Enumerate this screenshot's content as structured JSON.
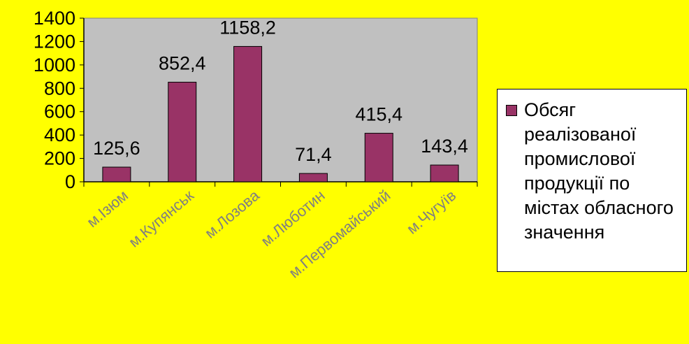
{
  "chart_data": {
    "type": "bar",
    "categories": [
      "м.Ізюм",
      "м.Купянськ",
      "м.Лозова",
      "м.Люботин",
      "м.Первомайський",
      "м.Чугуїв"
    ],
    "series": [
      {
        "name": "Обсяг реалізованої промислової продукції по містах обласного значення",
        "values": [
          125.6,
          852.4,
          1158.2,
          71.4,
          415.4,
          143.4
        ]
      }
    ],
    "data_labels": [
      "125,6",
      "852,4",
      "1158,2",
      "71,4",
      "415,4",
      "143,4"
    ],
    "y_ticks": [
      "0",
      "200",
      "400",
      "600",
      "800",
      "1000",
      "1200",
      "1400"
    ],
    "ylim": [
      0,
      1400
    ],
    "grid": false,
    "legend_position": "right",
    "colors": {
      "bar": "#993366",
      "plot_area": "#c0c0c0",
      "background": "#ffff00"
    }
  }
}
